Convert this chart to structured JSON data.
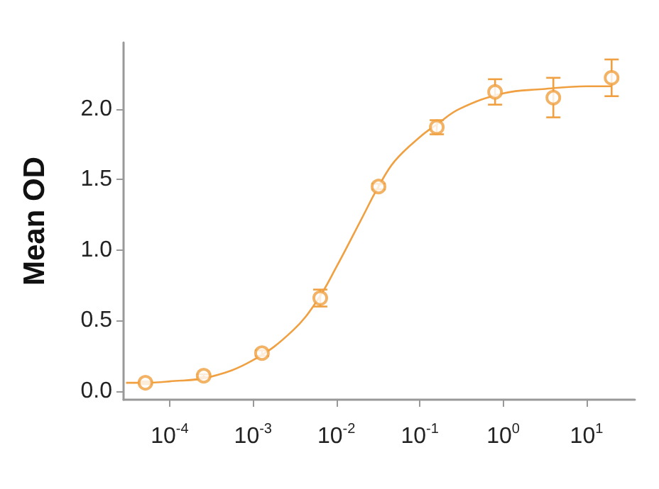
{
  "chart_data": {
    "type": "scatter",
    "ylabel": "Mean OD",
    "log": "x",
    "grid": false,
    "marker": "circle",
    "xlim": [
      2.8e-05,
      38
    ],
    "ylim": [
      -0.06,
      2.47
    ],
    "xticks": [
      {
        "value": 0.0001,
        "label": "10$^{-4}$"
      },
      {
        "value": 0.001,
        "label": "10$^{-3}$"
      },
      {
        "value": 0.01,
        "label": "10$^{-2}$"
      },
      {
        "value": 0.1,
        "label": "10$^{-1}$"
      },
      {
        "value": 1,
        "label": "10$^{0}$"
      },
      {
        "value": 10,
        "label": "10$^{1}$"
      }
    ],
    "yticks": [
      {
        "value": 0,
        "label": "0.0"
      },
      0.5,
      {
        "value": 1,
        "label": "1.0"
      },
      1.5,
      {
        "value": 2,
        "label": "2.0"
      }
    ],
    "series": [
      {
        "color": "#f0a040",
        "x": [
          5.12e-05,
          0.000256,
          0.00128,
          0.0064,
          0.032,
          0.16,
          0.8,
          4,
          20
        ],
        "values": [
          0.06,
          0.11,
          0.27,
          0.66,
          1.45,
          1.87,
          2.12,
          2.08,
          2.22
        ],
        "errors": [
          0.01,
          0.01,
          0.02,
          0.06,
          0.02,
          0.05,
          0.09,
          0.14,
          0.13
        ]
      },
      {
        "type": "line",
        "color": "#f0a040",
        "marker": "none",
        "x": [
          3e-05,
          5e-05,
          0.0001,
          0.0003,
          0.001,
          0.003,
          0.006,
          0.01,
          0.02,
          0.032,
          0.05,
          0.1,
          0.16,
          0.3,
          1,
          3,
          10,
          20
        ],
        "values": [
          0.06,
          0.06,
          0.07,
          0.1,
          0.22,
          0.43,
          0.65,
          0.88,
          1.22,
          1.45,
          1.63,
          1.8,
          1.89,
          2.0,
          2.11,
          2.14,
          2.16,
          2.16
        ]
      }
    ]
  }
}
